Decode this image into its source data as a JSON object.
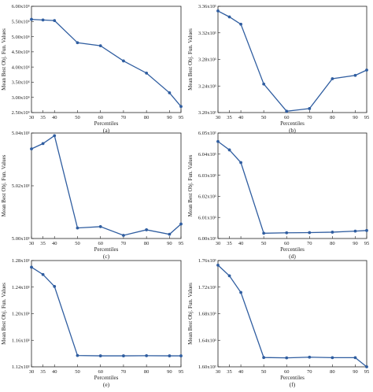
{
  "chart_data": [
    {
      "type": "line",
      "panel_label": "(a)",
      "xlabel": "Percentiles",
      "ylabel": "Mean Best Obj. Fun. Values",
      "x": [
        30,
        35,
        40,
        50,
        60,
        70,
        80,
        90,
        95
      ],
      "values": [
        5.57,
        5.55,
        5.53,
        4.8,
        4.7,
        4.2,
        3.8,
        3.15,
        2.7
      ],
      "ylim": [
        2.5,
        6.0
      ],
      "yticks": [
        2.5,
        3.0,
        3.5,
        4.0,
        4.5,
        5.0,
        5.5,
        6.0
      ],
      "ytick_labels": [
        "2.50x10⁶",
        "3.00x10⁶",
        "3.50x10⁶",
        "4.00x10⁶",
        "4.50x10⁶",
        "5.00x10⁶",
        "5.50x10⁶",
        "6.00x10⁶"
      ],
      "xticks": [
        30,
        35,
        40,
        50,
        60,
        70,
        80,
        90,
        95
      ],
      "grid": false
    },
    {
      "type": "line",
      "panel_label": "(b)",
      "xlabel": "Percentiles",
      "ylabel": "Mean Best Obj. Fun. Values",
      "x": [
        30,
        35,
        40,
        50,
        60,
        70,
        80,
        90,
        95
      ],
      "values": [
        3.353,
        3.344,
        3.333,
        3.243,
        3.202,
        3.206,
        3.251,
        3.256,
        3.264
      ],
      "ylim": [
        3.2,
        3.36
      ],
      "yticks": [
        3.2,
        3.24,
        3.28,
        3.32,
        3.36
      ],
      "ytick_labels": [
        "3.20x10¹",
        "3.24x10¹",
        "3.28x10¹",
        "3.32x10¹",
        "3.36x10¹"
      ],
      "xticks": [
        30,
        35,
        40,
        50,
        60,
        70,
        80,
        90,
        95
      ],
      "grid": false
    },
    {
      "type": "line",
      "panel_label": "(c)",
      "xlabel": "Percentiles",
      "ylabel": "Mean Best Obj. Fun. Values",
      "x": [
        30,
        35,
        40,
        50,
        60,
        70,
        80,
        90,
        95
      ],
      "values": [
        5.034,
        5.036,
        5.039,
        5.004,
        5.0045,
        5.0012,
        5.0033,
        5.0016,
        5.0055
      ],
      "ylim": [
        5.0,
        5.04
      ],
      "yticks": [
        5.0,
        5.02,
        5.04
      ],
      "ytick_labels": [
        "5.00x10¹",
        "5.02x10¹",
        "5.04x10¹"
      ],
      "xticks": [
        30,
        35,
        40,
        50,
        60,
        70,
        80,
        90,
        95
      ],
      "grid": false
    },
    {
      "type": "line",
      "panel_label": "(d)",
      "xlabel": "Percentiles",
      "ylabel": "Mean Best Obj. Fun. Values",
      "x": [
        30,
        35,
        40,
        50,
        60,
        70,
        80,
        90,
        95
      ],
      "values": [
        6.046,
        6.042,
        6.036,
        6.0025,
        6.0027,
        6.0028,
        6.003,
        6.0035,
        6.0038
      ],
      "ylim": [
        6.0,
        6.05
      ],
      "yticks": [
        6.0,
        6.01,
        6.02,
        6.03,
        6.04,
        6.05
      ],
      "ytick_labels": [
        "6.00x10¹",
        "6.01x10¹",
        "6.02x10¹",
        "6.03x10¹",
        "6.04x10¹",
        "6.05x10¹"
      ],
      "xticks": [
        30,
        35,
        40,
        50,
        60,
        70,
        80,
        90,
        95
      ],
      "grid": false
    },
    {
      "type": "line",
      "panel_label": "(e)",
      "xlabel": "Percentiles",
      "ylabel": "Mean Best Obj. Fun. Values",
      "x": [
        30,
        35,
        40,
        50,
        60,
        70,
        80,
        90,
        95
      ],
      "values": [
        1.27,
        1.259,
        1.241,
        1.137,
        1.1365,
        1.1365,
        1.1367,
        1.1365,
        1.1365
      ],
      "ylim": [
        1.12,
        1.28
      ],
      "yticks": [
        1.12,
        1.16,
        1.2,
        1.24,
        1.28
      ],
      "ytick_labels": [
        "1.12x10¹",
        "1.16x10¹",
        "1.20x10¹",
        "1.24x10¹",
        "1.28x10¹"
      ],
      "xticks": [
        30,
        35,
        40,
        50,
        60,
        70,
        80,
        90,
        95
      ],
      "grid": false
    },
    {
      "type": "line",
      "panel_label": "(f)",
      "xlabel": "Percentiles",
      "ylabel": "Mean Best Obj. Fun. Values",
      "x": [
        30,
        35,
        40,
        50,
        60,
        70,
        80,
        90,
        95
      ],
      "values": [
        1.753,
        1.737,
        1.712,
        1.614,
        1.6135,
        1.6145,
        1.6138,
        1.6138,
        1.6
      ],
      "ylim": [
        1.6,
        1.76
      ],
      "yticks": [
        1.6,
        1.64,
        1.68,
        1.72,
        1.76
      ],
      "ytick_labels": [
        "1.60x10¹",
        "1.64x10¹",
        "1.68x10¹",
        "1.72x10¹",
        "1.76x10¹"
      ],
      "xticks": [
        30,
        35,
        40,
        50,
        60,
        70,
        80,
        90,
        95
      ],
      "grid": false
    }
  ]
}
